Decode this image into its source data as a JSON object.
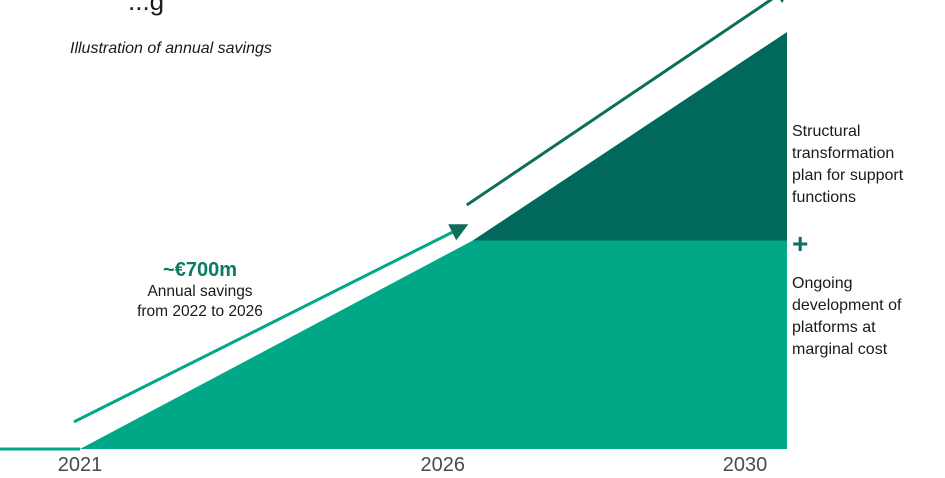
{
  "header": {
    "title_fragment": "...g",
    "subtitle": "Illustration of annual savings"
  },
  "callout": {
    "value": "~€700m",
    "line1": "Annual savings",
    "line2": "from 2022 to 2026"
  },
  "labels": {
    "structural": [
      "Structural",
      "transformation",
      "plan for support",
      "functions"
    ],
    "plus": "+",
    "ongoing": [
      "Ongoing",
      "development of",
      "platforms at",
      "marginal cost"
    ]
  },
  "chart_data": {
    "type": "area",
    "x_ticks": [
      "2021",
      "2026",
      "2030"
    ],
    "series": [
      {
        "name": "Ongoing development of platforms at marginal cost",
        "color": "#00a887",
        "points": [
          [
            2021,
            0
          ],
          [
            2026,
            1
          ],
          [
            2030,
            1
          ]
        ]
      },
      {
        "name": "Structural transformation plan for support functions",
        "color": "#00695c",
        "points": [
          [
            2026,
            0
          ],
          [
            2030,
            1
          ]
        ]
      }
    ],
    "ylim": [
      0,
      2.1
    ],
    "xlim": [
      2020.2,
      2030
    ],
    "arrows": [
      {
        "from": [
          2021,
          0.13
        ],
        "to": [
          2026,
          1.06
        ]
      },
      {
        "from": [
          2026,
          1.17
        ],
        "to": [
          2030,
          2.2
        ]
      }
    ],
    "grid": false
  }
}
